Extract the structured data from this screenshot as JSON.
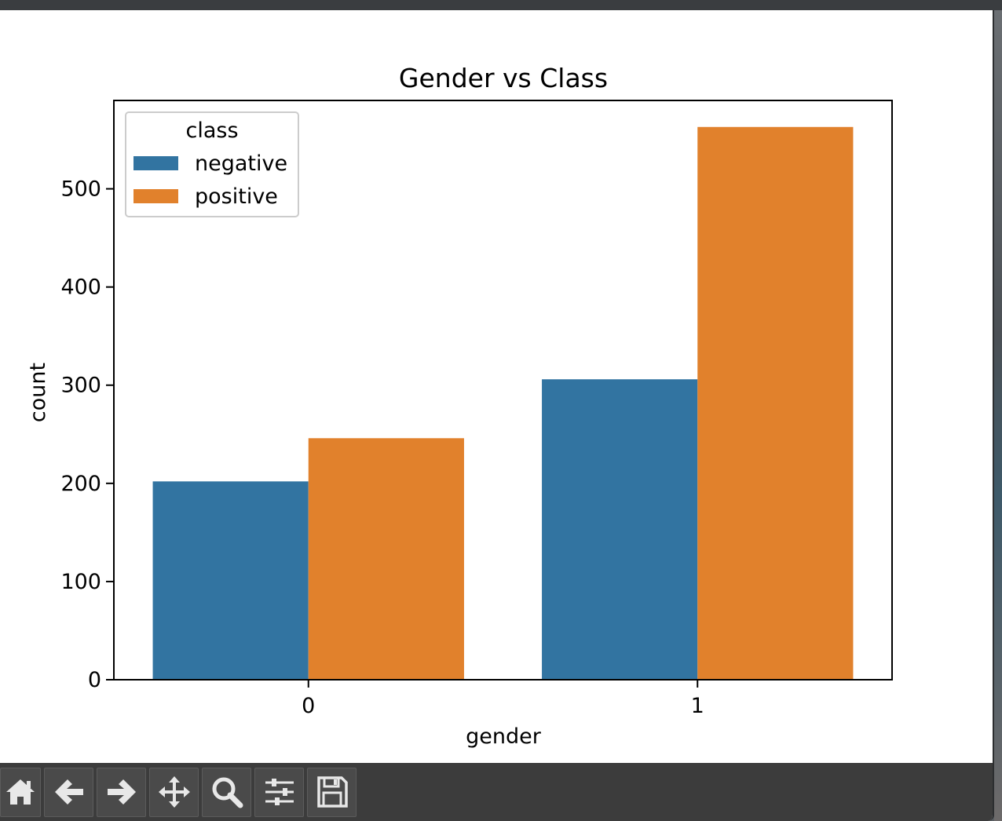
{
  "chart_data": {
    "type": "bar",
    "title": "Gender vs Class",
    "xlabel": "gender",
    "ylabel": "count",
    "categories": [
      "0",
      "1"
    ],
    "series": [
      {
        "name": "negative",
        "values": [
          202,
          306
        ],
        "color": "#3274a1"
      },
      {
        "name": "positive",
        "values": [
          246,
          563
        ],
        "color": "#e1812c"
      }
    ],
    "ylim": [
      0,
      590
    ],
    "yticks": [
      0,
      100,
      200,
      300,
      400,
      500
    ],
    "legend": {
      "title": "class",
      "placement": "top-left"
    },
    "grid": false
  },
  "toolbar": {
    "buttons": [
      {
        "name": "home-button",
        "icon": "home-icon"
      },
      {
        "name": "back-button",
        "icon": "arrow-left-icon"
      },
      {
        "name": "forward-button",
        "icon": "arrow-right-icon"
      },
      {
        "name": "pan-button",
        "icon": "move-icon"
      },
      {
        "name": "zoom-button",
        "icon": "magnifier-icon"
      },
      {
        "name": "configure-subplots-button",
        "icon": "sliders-icon"
      },
      {
        "name": "save-button",
        "icon": "floppy-disk-icon"
      }
    ]
  }
}
